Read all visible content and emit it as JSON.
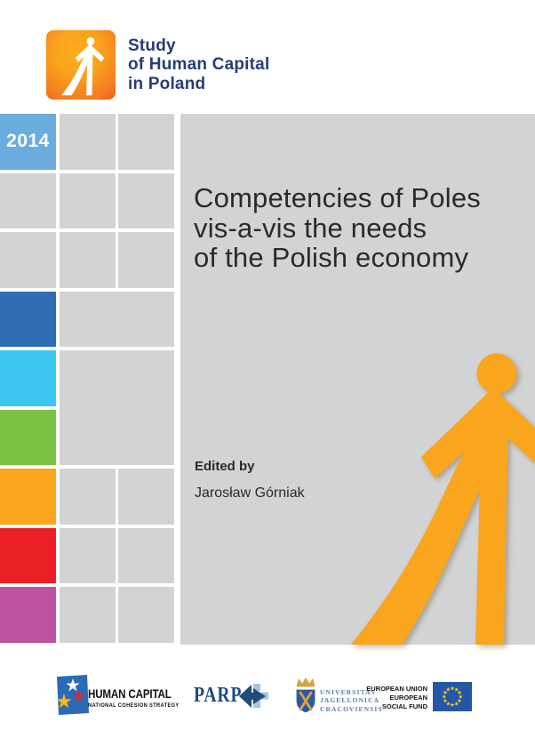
{
  "brand": {
    "line1": "Study",
    "line2": "of Human Capital",
    "line3": "in Poland"
  },
  "title": {
    "line1": "Competencies of Poles",
    "line2": "vis-a-vis the needs",
    "line3": "of the Polish economy"
  },
  "edited_by_label": "Edited by",
  "editor_name": "Jarosław Górniak",
  "grid": {
    "cells": [
      {
        "r": 1,
        "c": 1,
        "color": "year_blue",
        "label": "2014"
      },
      {
        "r": 1,
        "c": 2,
        "color": "gray"
      },
      {
        "r": 1,
        "c": 3,
        "color": "gray"
      },
      {
        "r": 2,
        "c": 1,
        "color": "gray"
      },
      {
        "r": 2,
        "c": 2,
        "color": "gray"
      },
      {
        "r": 2,
        "c": 3,
        "color": "gray"
      },
      {
        "r": 3,
        "c": 1,
        "color": "gray"
      },
      {
        "r": 3,
        "c": 2,
        "color": "gray"
      },
      {
        "r": 3,
        "c": 3,
        "color": "gray"
      },
      {
        "r": 4,
        "c": 1,
        "color": "dark_blue"
      },
      {
        "r": 4,
        "c": 2,
        "cs": 2,
        "color": "gray"
      },
      {
        "r": 5,
        "c": 1,
        "color": "cyan"
      },
      {
        "r": 5,
        "c": 2,
        "cs": 2,
        "rs": 2,
        "color": "gray"
      },
      {
        "r": 6,
        "c": 1,
        "color": "green"
      },
      {
        "r": 7,
        "c": 1,
        "color": "orange_sq"
      },
      {
        "r": 7,
        "c": 2,
        "color": "gray"
      },
      {
        "r": 7,
        "c": 3,
        "color": "gray"
      },
      {
        "r": 8,
        "c": 1,
        "color": "red"
      },
      {
        "r": 8,
        "c": 2,
        "color": "gray"
      },
      {
        "r": 8,
        "c": 3,
        "color": "gray"
      },
      {
        "r": 9,
        "c": 1,
        "color": "magenta"
      },
      {
        "r": 9,
        "c": 2,
        "color": "gray"
      },
      {
        "r": 9,
        "c": 3,
        "color": "gray"
      }
    ]
  },
  "footer": {
    "human_capital": {
      "title": "HUMAN CAPITAL",
      "subtitle": "NATIONAL COHESION STRATEGY"
    },
    "parp": {
      "label": "PARP"
    },
    "university": {
      "line1": "UNIVERSITAS",
      "line2": "JAGELLONICA",
      "line3": "CRACOVIENSIS"
    },
    "eu": {
      "line1": "EUROPEAN UNION",
      "line2": "EUROPEAN",
      "line3": "SOCIAL FUND"
    }
  },
  "colors": {
    "gray": "#D2D3D5",
    "brand_navy": "#263D76",
    "title_text": "#2D2926",
    "orange": "#F9A51E",
    "year_blue": "#6BACDF",
    "dark_blue": "#2F6DB5",
    "cyan": "#3FC7F4",
    "green": "#7CC242",
    "orange_sq": "#FAA51D",
    "red": "#EC1F26",
    "magenta": "#BE529E",
    "parp_navy": "#1F4B7D",
    "parp_light": "#A9C4DE",
    "uj_blue": "#2B5AA5",
    "uj_gold": "#D9A440",
    "uj_text": "#5E7CA6",
    "eu_blue": "#2557A6",
    "eu_star": "#F8D12E",
    "hc_blue": "#2B6AB5",
    "hc_red": "#E8232B",
    "hc_yellow": "#FDB913"
  }
}
